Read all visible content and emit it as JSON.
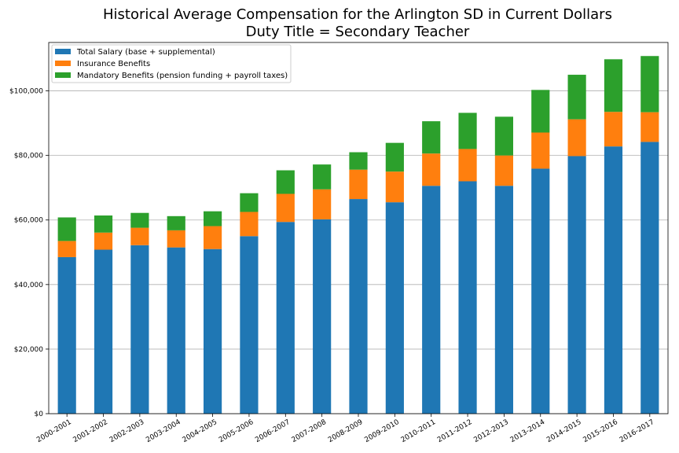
{
  "chart_data": {
    "type": "bar",
    "stacked": true,
    "title": "Historical Average Compensation for the Arlington SD in Current Dollars",
    "subtitle": "Duty Title = Secondary Teacher",
    "xlabel": "",
    "ylabel": "",
    "categories": [
      "2000-2001",
      "2001-2002",
      "2002-2003",
      "2003-2004",
      "2004-2005",
      "2005-2006",
      "2006-2007",
      "2007-2008",
      "2008-2009",
      "2009-2010",
      "2010-2011",
      "2011-2012",
      "2012-2013",
      "2013-2014",
      "2014-2015",
      "2015-2016",
      "2016-2017"
    ],
    "series": [
      {
        "name": "Total Salary (base + supplemental)",
        "color": "#1f77b4",
        "values": [
          48500,
          50800,
          52200,
          51500,
          51000,
          55000,
          59400,
          60200,
          66500,
          65500,
          70600,
          72000,
          70600,
          75900,
          79800,
          82800,
          84200
        ]
      },
      {
        "name": "Insurance Benefits",
        "color": "#ff7f0e",
        "values": [
          5000,
          5300,
          5400,
          5300,
          7100,
          7500,
          8700,
          9300,
          9100,
          9500,
          10000,
          10000,
          9400,
          11200,
          11400,
          10700,
          9200
        ]
      },
      {
        "name": "Mandatory Benefits (pension funding + payroll taxes)",
        "color": "#2ca02c",
        "values": [
          7300,
          5300,
          4600,
          4400,
          4600,
          5800,
          7300,
          7700,
          5400,
          8900,
          10000,
          11200,
          12000,
          13200,
          13800,
          16300,
          17400
        ]
      }
    ],
    "ylim": [
      0,
      115000
    ],
    "yticks": [
      0,
      20000,
      40000,
      60000,
      80000,
      100000
    ],
    "ytick_labels": [
      "$0",
      "$20,000",
      "$40,000",
      "$60,000",
      "$80,000",
      "$100,000"
    ],
    "grid": "horizontal",
    "legend_position": "top-left"
  }
}
